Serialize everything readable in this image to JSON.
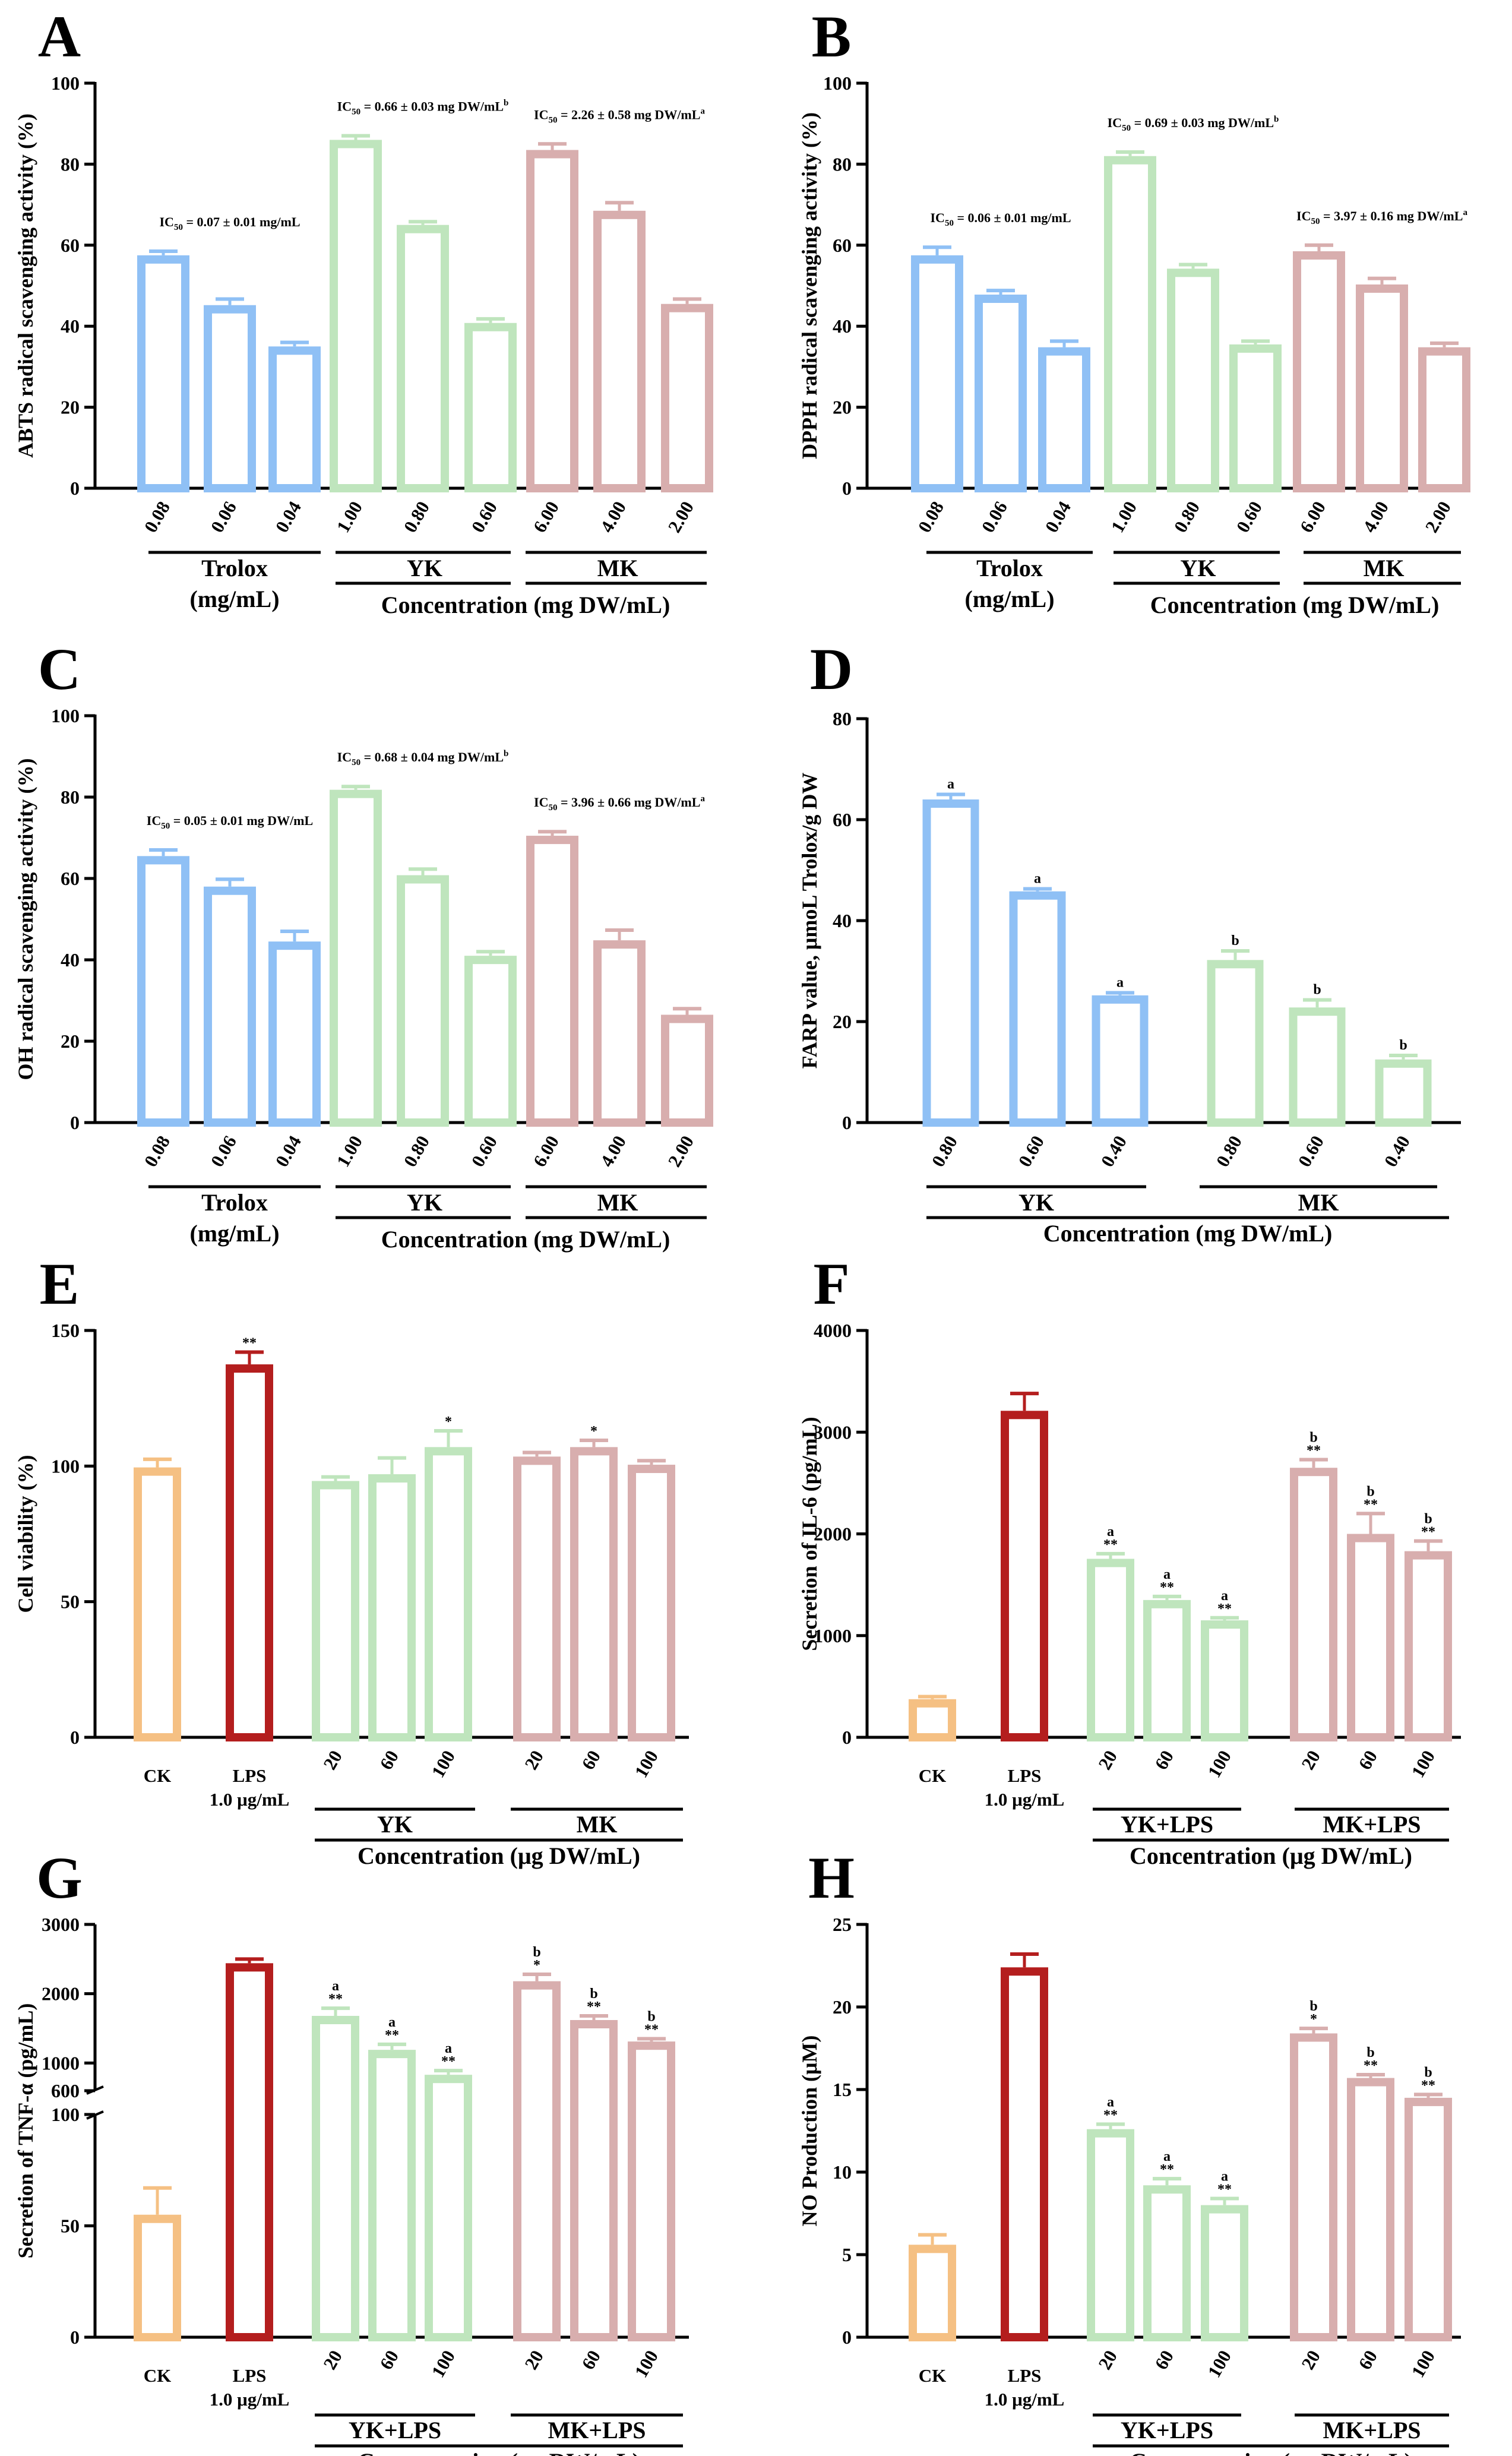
{
  "colors": {
    "blue": "#8fc0f5",
    "green": "#bfe5bd",
    "pink": "#d8aeae",
    "orange": "#f5c083",
    "red": "#b41e1e"
  },
  "chart_data": [
    {
      "panel": "A",
      "type": "bar",
      "title": "",
      "ylabel": "ABTS radical scavenging activity (%)",
      "ylim": [
        0,
        100
      ],
      "yticks": [
        "0",
        "20",
        "40",
        "60",
        "80",
        "100"
      ],
      "categories": [
        "0.08",
        "0.06",
        "0.04",
        "1.00",
        "0.80",
        "0.60",
        "6.00",
        "4.00",
        "2.00"
      ],
      "values": [
        57.5,
        45.2,
        35.0,
        86.0,
        65.0,
        40.8,
        83.5,
        68.5,
        45.5
      ],
      "errors": [
        1.0,
        1.5,
        1.0,
        1.0,
        0.8,
        1.0,
        1.5,
        2.0,
        1.2
      ],
      "series_groups": [
        "blue",
        "blue",
        "blue",
        "green",
        "green",
        "green",
        "pink",
        "pink",
        "pink"
      ],
      "group_labels": [
        "Trolox",
        "YK",
        "MK"
      ],
      "sublabel": "(mg/mL)",
      "xlabel": "Concentration (mg DW/mL)",
      "annotations": [
        {
          "text": "IC50 = 0.07 ± 0.01 mg/mL",
          "over": 1
        },
        {
          "text": "IC50 = 0.66 ± 0.03 mg DW/mLb",
          "over": 4
        },
        {
          "text": "IC50 = 2.26 ± 0.58 mg DW/mLa",
          "over": 7
        }
      ]
    },
    {
      "panel": "B",
      "type": "bar",
      "title": "",
      "ylabel": "DPPH radical scavenging activity (%)",
      "ylim": [
        0,
        100
      ],
      "yticks": [
        "0",
        "20",
        "40",
        "60",
        "80",
        "100"
      ],
      "categories": [
        "0.08",
        "0.06",
        "0.04",
        "1.00",
        "0.80",
        "0.60",
        "6.00",
        "4.00",
        "2.00"
      ],
      "values": [
        57.5,
        47.8,
        34.8,
        82.0,
        54.2,
        35.5,
        58.5,
        50.3,
        34.8
      ],
      "errors": [
        2.0,
        1.0,
        1.5,
        1.0,
        1.0,
        0.8,
        1.5,
        1.5,
        1.0
      ],
      "series_groups": [
        "blue",
        "blue",
        "blue",
        "green",
        "green",
        "green",
        "pink",
        "pink",
        "pink"
      ],
      "group_labels": [
        "Trolox",
        "YK",
        "MK"
      ],
      "sublabel": "(mg/mL)",
      "xlabel": "Concentration (mg DW/mL)",
      "annotations": [
        {
          "text": "IC50 = 0.06 ± 0.01 mg/mL",
          "over": 1
        },
        {
          "text": "IC50 = 0.69 ± 0.03 mg DW/mLb",
          "over": 4
        },
        {
          "text": "IC50 = 3.97 ± 0.16 mg DW/mLa",
          "over": 7
        }
      ]
    },
    {
      "panel": "C",
      "type": "bar",
      "title": "",
      "ylabel": "OH radical scavenging activity (%)",
      "ylim": [
        0,
        100
      ],
      "yticks": [
        "0",
        "20",
        "40",
        "60",
        "80",
        "100"
      ],
      "categories": [
        "0.08",
        "0.06",
        "0.04",
        "1.00",
        "0.80",
        "0.60",
        "6.00",
        "4.00",
        "2.00"
      ],
      "values": [
        65.5,
        58.0,
        44.5,
        81.8,
        60.8,
        41.0,
        70.5,
        44.8,
        26.5
      ],
      "errors": [
        1.5,
        1.8,
        2.5,
        0.8,
        1.5,
        1.0,
        1.0,
        2.5,
        1.5
      ],
      "series_groups": [
        "blue",
        "blue",
        "blue",
        "green",
        "green",
        "green",
        "pink",
        "pink",
        "pink"
      ],
      "group_labels": [
        "Trolox",
        "YK",
        "MK"
      ],
      "sublabel": "(mg/mL)",
      "xlabel": "Concentration (mg DW/mL)",
      "annotations": [
        {
          "text": "IC50 = 0.05 ± 0.01 mg DW/mL",
          "over": 1
        },
        {
          "text": "IC50 = 0.68 ± 0.04 mg DW/mLb",
          "over": 4
        },
        {
          "text": "IC50 = 3.96 ± 0.66 mg DW/mLa",
          "over": 7
        }
      ]
    },
    {
      "panel": "D",
      "type": "bar",
      "title": "",
      "ylabel": "FARP value, μmoL Trolox/g DW",
      "ylim": [
        0,
        80
      ],
      "yticks": [
        "0",
        "20",
        "40",
        "60",
        "80"
      ],
      "categories": [
        "0.80",
        "0.60",
        "0.40",
        "0.80",
        "0.60",
        "0.40"
      ],
      "values": [
        64.0,
        45.8,
        25.2,
        32.2,
        22.8,
        12.5
      ],
      "errors": [
        1.0,
        0.5,
        0.5,
        1.8,
        1.5,
        0.8
      ],
      "series_groups": [
        "blue",
        "blue",
        "blue",
        "green",
        "green",
        "green"
      ],
      "group_labels": [
        "YK",
        "MK"
      ],
      "xlabel": "Concentration (mg DW/mL)",
      "letters": [
        "a",
        "a",
        "a",
        "b",
        "b",
        "b"
      ]
    },
    {
      "panel": "E",
      "type": "bar",
      "title": "",
      "ylabel": "Cell viability (%)",
      "ylim": [
        0,
        150
      ],
      "yticks": [
        "0",
        "50",
        "100",
        "150"
      ],
      "categories": [
        "CK",
        "LPS",
        "20",
        "60",
        "100",
        "20",
        "60",
        "100"
      ],
      "lps_sub": "1.0 μg/mL",
      "values": [
        99.5,
        137.5,
        94.5,
        97.0,
        107.0,
        103.5,
        107.0,
        100.5
      ],
      "errors": [
        3.0,
        4.5,
        1.5,
        6.0,
        6.0,
        1.5,
        2.5,
        1.5
      ],
      "series_groups": [
        "orange",
        "red",
        "green",
        "green",
        "green",
        "pink",
        "pink",
        "pink"
      ],
      "group_labels": [
        "YK",
        "MK"
      ],
      "xlabel": "Concentration (μg DW/mL)",
      "stars": [
        "",
        "**",
        "",
        "",
        "*",
        "",
        "*",
        ""
      ],
      "letters": [
        "",
        "",
        "",
        "",
        "",
        "",
        "",
        ""
      ]
    },
    {
      "panel": "F",
      "type": "bar",
      "title": "",
      "ylabel": "Secretion of IL-6 (pg/mL)",
      "ylim": [
        0,
        4000
      ],
      "yticks": [
        "0",
        "1000",
        "2000",
        "3000",
        "4000"
      ],
      "categories": [
        "CK",
        "LPS",
        "20",
        "60",
        "100",
        "20",
        "60",
        "100"
      ],
      "lps_sub": "1.0 μg/mL",
      "values": [
        375,
        3210,
        1755,
        1350,
        1150,
        2650,
        2000,
        1830
      ],
      "errors": [
        25,
        170,
        50,
        35,
        25,
        80,
        200,
        100
      ],
      "series_groups": [
        "orange",
        "red",
        "green",
        "green",
        "green",
        "pink",
        "pink",
        "pink"
      ],
      "group_labels": [
        "YK+LPS",
        "MK+LPS"
      ],
      "xlabel": "Concentration (μg DW/mL)",
      "stars": [
        "",
        "",
        "**",
        "**",
        "**",
        "**",
        "**",
        "**"
      ],
      "letters": [
        "",
        "",
        "a",
        "a",
        "a",
        "b",
        "b",
        "b"
      ]
    },
    {
      "panel": "G",
      "type": "bar",
      "title": "",
      "ylabel": "Secretion of TNF-α (pg/mL)",
      "broken_axis": {
        "lower": [
          0,
          100
        ],
        "upper": [
          600,
          3000
        ]
      },
      "yticks_lower": [
        "0",
        "50",
        "100"
      ],
      "yticks_upper": [
        "600",
        "1000",
        "2000",
        "3000"
      ],
      "categories": [
        "CK",
        "LPS",
        "20",
        "60",
        "100",
        "20",
        "60",
        "100"
      ],
      "lps_sub": "1.0 μg/mL",
      "values": [
        55,
        2440,
        1680,
        1190,
        830,
        2180,
        1620,
        1310
      ],
      "errors": [
        12,
        60,
        110,
        80,
        60,
        100,
        60,
        40
      ],
      "series_groups": [
        "orange",
        "red",
        "green",
        "green",
        "green",
        "pink",
        "pink",
        "pink"
      ],
      "group_labels": [
        "YK+LPS",
        "MK+LPS"
      ],
      "xlabel": "Concentration (μg DW/mL)",
      "stars": [
        "",
        "",
        "**",
        "**",
        "**",
        "*",
        "**",
        "**"
      ],
      "letters": [
        "",
        "",
        "a",
        "a",
        "a",
        "b",
        "b",
        "b"
      ]
    },
    {
      "panel": "H",
      "type": "bar",
      "title": "",
      "ylabel": "NO Production (μM)",
      "ylim": [
        0,
        25
      ],
      "yticks": [
        "0",
        "5",
        "10",
        "15",
        "20",
        "25"
      ],
      "categories": [
        "CK",
        "LPS",
        "20",
        "60",
        "100",
        "20",
        "60",
        "100"
      ],
      "lps_sub": "1.0 μg/mL",
      "values": [
        5.6,
        22.4,
        12.6,
        9.2,
        8.0,
        18.4,
        15.7,
        14.5
      ],
      "errors": [
        0.6,
        0.8,
        0.3,
        0.4,
        0.4,
        0.3,
        0.2,
        0.2
      ],
      "series_groups": [
        "orange",
        "red",
        "green",
        "green",
        "green",
        "pink",
        "pink",
        "pink"
      ],
      "group_labels": [
        "YK+LPS",
        "MK+LPS"
      ],
      "xlabel": "Concentration (μg DW/mL)",
      "stars": [
        "",
        "",
        "**",
        "**",
        "**",
        "*",
        "**",
        "**"
      ],
      "letters": [
        "",
        "",
        "a",
        "a",
        "a",
        "b",
        "b",
        "b"
      ]
    }
  ]
}
